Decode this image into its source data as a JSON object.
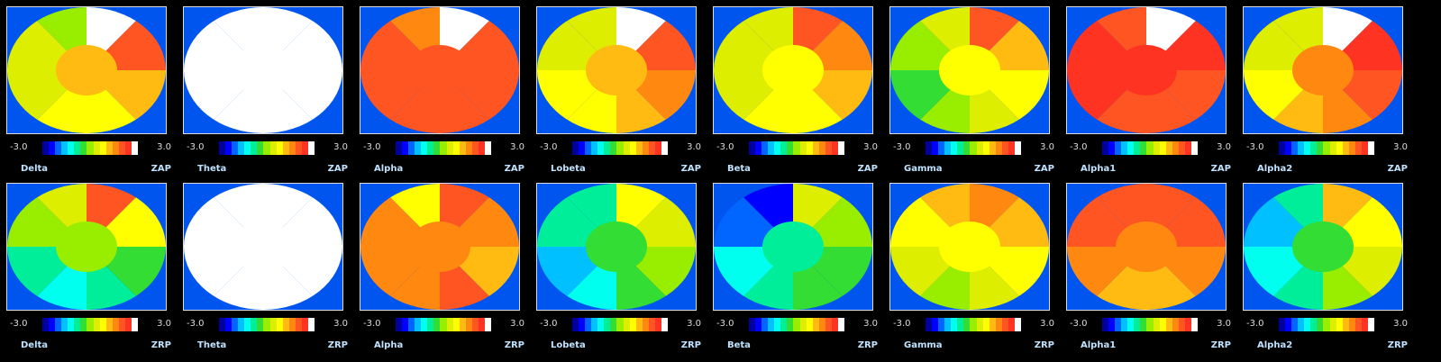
{
  "scale": {
    "min_label": "-3.0",
    "max_label": "3.0"
  },
  "colors": {
    "background": "#0055ee",
    "border": "#dddddd",
    "colorbar": [
      "#0000a0",
      "#0000ff",
      "#0066ff",
      "#00c0ff",
      "#00ffee",
      "#00ee99",
      "#33dd33",
      "#99ee00",
      "#ddee00",
      "#ffff00",
      "#ffbb11",
      "#ff8811",
      "#ff5522",
      "#ff3322",
      "#ffffff"
    ]
  },
  "rows": [
    {
      "metric": "ZAP",
      "maps": [
        {
          "band": "Delta",
          "levels": [
            2.5,
            1.8,
            1.2,
            0.9,
            0.6,
            0.3,
            0.2,
            0.1
          ]
        },
        {
          "band": "Theta",
          "levels": [
            3.0,
            3.0,
            3.0,
            3.0,
            3.0,
            3.0,
            3.0,
            3.0
          ]
        },
        {
          "band": "Alpha",
          "levels": [
            3.0,
            2.0,
            2.0,
            1.8,
            1.8,
            2.0,
            1.8,
            1.6
          ]
        },
        {
          "band": "Lobeta",
          "levels": [
            3.0,
            2.0,
            1.5,
            1.0,
            0.8,
            0.6,
            0.5,
            0.3
          ]
        },
        {
          "band": "Beta",
          "levels": [
            1.8,
            1.4,
            1.0,
            0.8,
            0.6,
            0.4,
            0.3,
            0.2
          ]
        },
        {
          "band": "Gamma",
          "levels": [
            1.8,
            1.2,
            0.8,
            0.4,
            0.0,
            -0.3,
            0.0,
            0.4
          ]
        },
        {
          "band": "Alpha1",
          "levels": [
            3.0,
            2.2,
            2.0,
            2.0,
            2.0,
            2.2,
            2.4,
            2.0
          ]
        },
        {
          "band": "Alpha2",
          "levels": [
            3.0,
            2.2,
            1.8,
            1.4,
            1.0,
            0.8,
            0.5,
            0.3
          ]
        }
      ]
    },
    {
      "metric": "ZRP",
      "maps": [
        {
          "band": "Delta",
          "levels": [
            1.8,
            0.6,
            -0.3,
            -0.8,
            -1.4,
            -0.8,
            0.0,
            0.4
          ]
        },
        {
          "band": "Theta",
          "levels": [
            3.0,
            2.6,
            3.0,
            3.0,
            3.0,
            3.0,
            3.0,
            3.0
          ]
        },
        {
          "band": "Alpha",
          "levels": [
            1.8,
            1.4,
            1.2,
            1.8,
            1.6,
            1.6,
            1.4,
            0.8
          ]
        },
        {
          "band": "Lobeta",
          "levels": [
            0.8,
            0.4,
            0.0,
            -0.4,
            -1.2,
            -1.6,
            -0.8,
            -1.0
          ]
        },
        {
          "band": "Beta",
          "levels": [
            0.4,
            0.0,
            -0.4,
            -0.6,
            -0.9,
            -1.3,
            -2.2,
            -2.6
          ]
        },
        {
          "band": "Gamma",
          "levels": [
            1.6,
            1.2,
            0.6,
            0.2,
            -0.2,
            0.2,
            0.6,
            1.0
          ]
        },
        {
          "band": "Alpha1",
          "levels": [
            2.0,
            1.8,
            1.6,
            1.2,
            1.0,
            1.4,
            2.0,
            1.8
          ]
        },
        {
          "band": "Alpha2",
          "levels": [
            1.2,
            0.8,
            0.4,
            0.0,
            -0.8,
            -1.4,
            -1.8,
            -1.0
          ]
        }
      ]
    }
  ]
}
